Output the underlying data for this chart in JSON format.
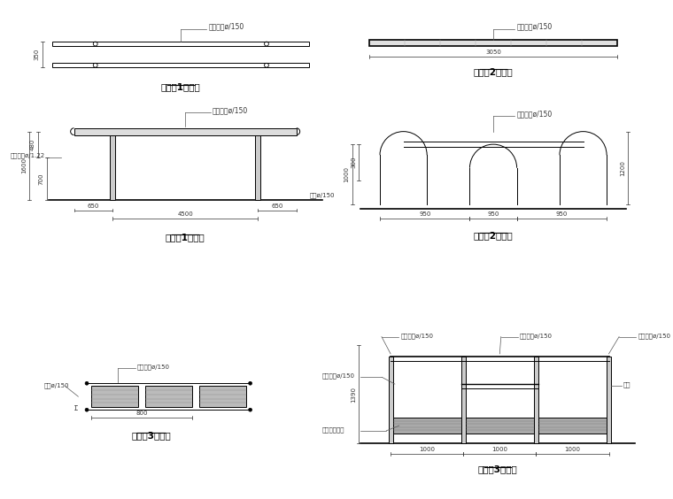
{
  "bg_color": "#ffffff",
  "line_color": "#000000",
  "dim_color": "#555555",
  "title_fontsize": 7.5,
  "label_fontsize": 5.5,
  "dim_fontsize": 5.0,
  "titles": [
    "健身器1平面图",
    "健身器2平面图",
    "健身器1立面图",
    "健身器2立面图",
    "健身器3平面图",
    "健身器3立面图"
  ],
  "annotations": {
    "plan1_top": "白色钢管ø/150",
    "plan2_top": "金色钢管ø/150",
    "elev1_top": "白色钢管ø/150",
    "elev1_side": "金色钢管ø/1.22",
    "elev2_top": "金色钢管ø/150",
    "plan3_top1": "白色钢管ø/150",
    "plan3_side": "钢管ø/150",
    "elev3_top1": "白色钢管ø/150",
    "elev3_top2": "灰色钢管ø/150",
    "elev3_top3": "白色钢管ø/150",
    "elev3_mid": "金色钢管ø/150",
    "elev3_bot": "白色钢管组件",
    "elev3_right": "钢板",
    "elev1_note": "钢管ø/150"
  },
  "dims": {
    "plan1_v": "350",
    "plan2_h": "3050",
    "elev1_v1": "480",
    "elev1_v2": "700",
    "elev1_vt": "1600",
    "elev1_h1": "650",
    "elev1_h2": "4500",
    "elev1_h3": "650",
    "elev2_v1": "1000",
    "elev2_v2": "300",
    "elev2_vr": "1200",
    "elev2_h1": "950",
    "elev2_h2": "950",
    "elev2_h3": "950",
    "plan3_h": "800",
    "elev3_v": "1390",
    "elev3_h1": "1000",
    "elev3_h2": "1000",
    "elev3_h3": "1000"
  }
}
